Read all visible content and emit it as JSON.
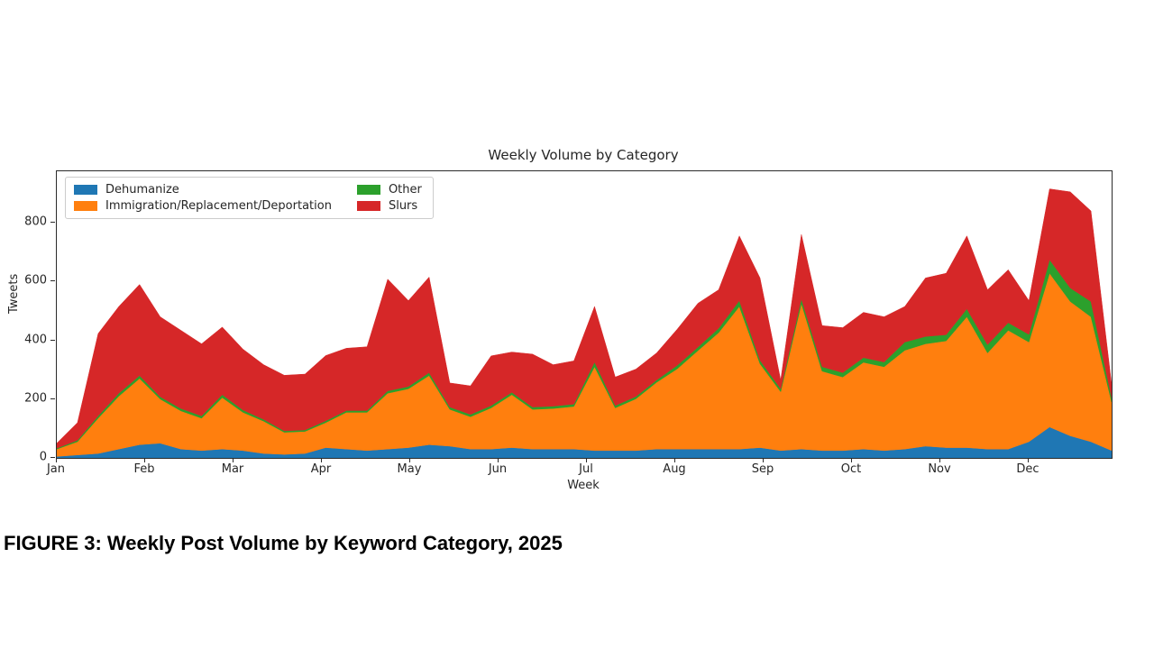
{
  "caption": "FIGURE 3: Weekly Post Volume by Keyword Category, 2025",
  "chart_data": {
    "type": "area",
    "stacked": true,
    "title": "Weekly Volume by Category",
    "xlabel": "Week",
    "ylabel": "Tweets",
    "ylim": [
      0,
      975
    ],
    "y_ticks": [
      0,
      200,
      400,
      600,
      800
    ],
    "x_tick_labels": [
      "Jan",
      "Feb",
      "Mar",
      "Apr",
      "May",
      "Jun",
      "Jul",
      "Aug",
      "Sep",
      "Oct",
      "Nov",
      "Dec"
    ],
    "grid": false,
    "legend_position": "upper left",
    "legend_columns": 2,
    "x_unit": "week-of-2025",
    "x": [
      1,
      2,
      3,
      4,
      5,
      6,
      7,
      8,
      9,
      10,
      11,
      12,
      13,
      14,
      15,
      16,
      17,
      18,
      19,
      20,
      21,
      22,
      23,
      24,
      25,
      26,
      27,
      28,
      29,
      30,
      31,
      32,
      33,
      34,
      35,
      36,
      37,
      38,
      39,
      40,
      41,
      42,
      43,
      44,
      45,
      46,
      47,
      48,
      49,
      50,
      51,
      52
    ],
    "series": [
      {
        "name": "Dehumanize",
        "color": "#1f77b4",
        "values": [
          5,
          10,
          15,
          30,
          45,
          50,
          30,
          25,
          30,
          25,
          15,
          12,
          15,
          35,
          30,
          25,
          30,
          35,
          45,
          40,
          30,
          30,
          35,
          30,
          30,
          30,
          25,
          25,
          25,
          30,
          30,
          30,
          30,
          30,
          35,
          25,
          30,
          25,
          25,
          30,
          25,
          30,
          40,
          35,
          35,
          30,
          30,
          55,
          105,
          75,
          55,
          25
        ]
      },
      {
        "name": "Immigration/Replacement/Deportation",
        "color": "#ff7f0e",
        "values": [
          25,
          45,
          120,
          180,
          225,
          150,
          130,
          110,
          175,
          130,
          110,
          75,
          75,
          85,
          125,
          130,
          190,
          200,
          235,
          125,
          110,
          140,
          180,
          135,
          138,
          145,
          285,
          145,
          176,
          227,
          273,
          335,
          396,
          485,
          285,
          200,
          495,
          270,
          250,
          295,
          285,
          336,
          348,
          363,
          445,
          327,
          404,
          339,
          523,
          457,
          425,
          165
        ]
      },
      {
        "name": "Other",
        "color": "#2ca02c",
        "values": [
          3,
          5,
          8,
          10,
          10,
          8,
          8,
          8,
          10,
          8,
          6,
          5,
          5,
          6,
          6,
          6,
          8,
          8,
          10,
          8,
          8,
          8,
          8,
          8,
          8,
          8,
          16,
          8,
          8,
          8,
          12,
          12,
          15,
          20,
          12,
          10,
          16,
          15,
          15,
          16,
          16,
          28,
          25,
          21,
          27,
          28,
          26,
          26,
          46,
          46,
          52,
          15
        ]
      },
      {
        "name": "Slurs",
        "color": "#d62728",
        "values": [
          17,
          60,
          280,
          295,
          310,
          272,
          266,
          245,
          230,
          207,
          186,
          189,
          190,
          222,
          212,
          217,
          380,
          292,
          325,
          82,
          97,
          169,
          137,
          180,
          141,
          147,
          189,
          97,
          93,
          92,
          123,
          149,
          131,
          220,
          280,
          30,
          219,
          140,
          153,
          154,
          154,
          121,
          199,
          209,
          248,
          187,
          180,
          115,
          241,
          327,
          308,
          45
        ]
      }
    ]
  }
}
